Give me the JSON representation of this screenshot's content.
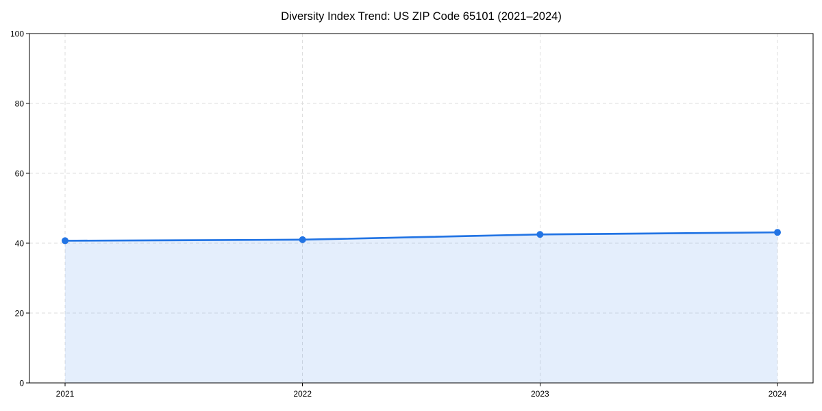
{
  "chart_data": {
    "type": "area",
    "title": "Diversity Index Trend: US ZIP Code 65101 (2021–2024)",
    "categories": [
      "2021",
      "2022",
      "2023",
      "2024"
    ],
    "x": [
      2021,
      2022,
      2023,
      2024
    ],
    "series": [
      {
        "name": "Diversity Index",
        "values": [
          40.7,
          41.0,
          42.5,
          43.1
        ]
      }
    ],
    "xlabel": "",
    "ylabel": "",
    "xlim": [
      2020.85,
      2024.15
    ],
    "ylim": [
      0,
      100
    ],
    "yticks": [
      0,
      20,
      40,
      60,
      80,
      100
    ],
    "xticks": [
      2021,
      2022,
      2023,
      2024
    ],
    "grid": "both",
    "grid_style": "dashed",
    "legend": "none",
    "marker": "circle",
    "colors": {
      "line": "#2274e4",
      "marker": "#2274e4",
      "fill": "rgba(34,116,228,0.12)",
      "grid": "#dedede",
      "axis": "#000000",
      "text": "#000000",
      "background": "#ffffff"
    }
  }
}
